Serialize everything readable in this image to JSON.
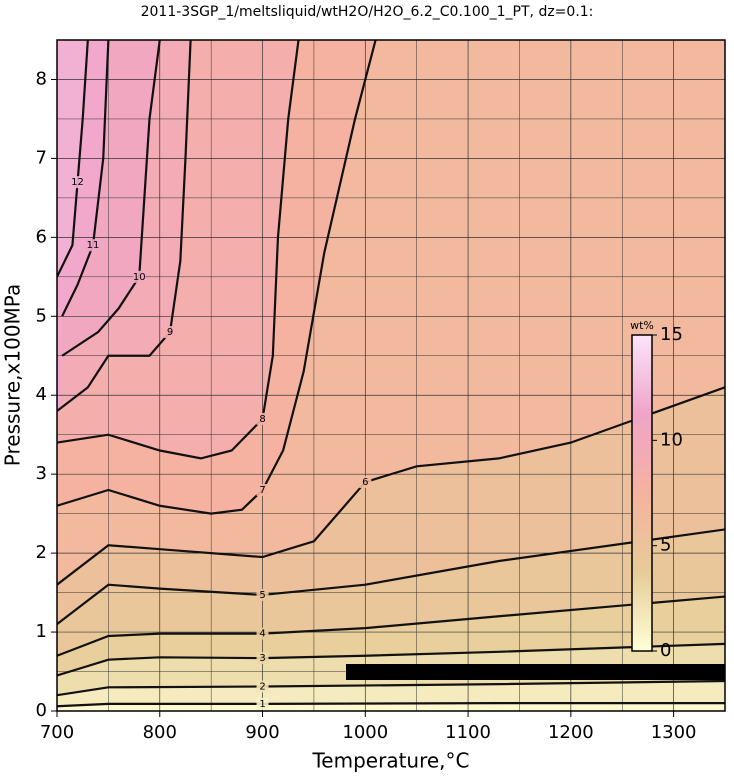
{
  "chart_data": {
    "type": "contour",
    "title": "2011-3SGP_1/meltsliquid/wtH2O/H2O_6.2_C0.100_1_PT, dz=0.1:",
    "x_label": "Temperature,°C",
    "y_label": "Pressure,x100MPa",
    "xlim": [
      700,
      1350
    ],
    "ylim": [
      0,
      8.5
    ],
    "xticks": [
      700,
      800,
      900,
      1000,
      1100,
      1200,
      1300
    ],
    "yticks": [
      0,
      1,
      2,
      3,
      4,
      5,
      6,
      7,
      8
    ],
    "xgrid_minor": [
      750,
      850,
      950,
      1050,
      1150,
      1250
    ],
    "ygrid_minor": [
      0.5,
      1.5,
      2.5,
      3.5,
      4.5,
      5.5,
      6.5,
      7.5
    ],
    "grid": true,
    "colormap": [
      "#ffffd8",
      "#e6cc98",
      "#f6b2a0",
      "#f0a4c8",
      "#fbe4fb"
    ],
    "colorbar": {
      "label": "wt%",
      "clim": [
        0,
        15
      ],
      "ticks": [
        0,
        5,
        10,
        15
      ]
    },
    "series": [
      {
        "level": 1,
        "x": [
          700,
          750,
          900,
          1130,
          1350
        ],
        "y": [
          0.06,
          0.09,
          0.09,
          0.1,
          0.1
        ]
      },
      {
        "level": 2,
        "x": [
          700,
          750,
          900,
          1130,
          1350
        ],
        "y": [
          0.2,
          0.3,
          0.31,
          0.34,
          0.38
        ]
      },
      {
        "level": 3,
        "x": [
          700,
          750,
          800,
          900,
          1000,
          1130,
          1350
        ],
        "y": [
          0.45,
          0.65,
          0.68,
          0.67,
          0.7,
          0.75,
          0.85
        ]
      },
      {
        "level": 4,
        "x": [
          700,
          750,
          800,
          900,
          1000,
          1130,
          1350
        ],
        "y": [
          0.7,
          0.95,
          0.98,
          0.98,
          1.05,
          1.2,
          1.45
        ]
      },
      {
        "level": 5,
        "x": [
          700,
          750,
          800,
          900,
          1000,
          1130,
          1350
        ],
        "y": [
          1.1,
          1.6,
          1.55,
          1.47,
          1.6,
          1.9,
          2.3
        ]
      },
      {
        "level": 6,
        "x": [
          700,
          750,
          800,
          900,
          950,
          1000,
          1050,
          1130,
          1200,
          1350
        ],
        "y": [
          1.6,
          2.1,
          2.05,
          1.95,
          2.15,
          2.9,
          3.1,
          3.2,
          3.4,
          4.1
        ]
      },
      {
        "level": 7,
        "x": [
          700,
          750,
          800,
          850,
          880,
          900,
          920,
          940,
          960,
          990,
          1010
        ],
        "y": [
          2.6,
          2.8,
          2.6,
          2.5,
          2.55,
          2.8,
          3.3,
          4.3,
          5.8,
          7.5,
          8.5
        ]
      },
      {
        "level": 8,
        "x": [
          700,
          750,
          800,
          840,
          870,
          900,
          910,
          915,
          925,
          935
        ],
        "y": [
          3.4,
          3.5,
          3.3,
          3.2,
          3.3,
          3.7,
          4.5,
          6.0,
          7.5,
          8.5
        ]
      },
      {
        "level": 9,
        "x": [
          700,
          730,
          750,
          790,
          810,
          820,
          825,
          830
        ],
        "y": [
          3.8,
          4.1,
          4.5,
          4.5,
          4.8,
          5.7,
          7.0,
          8.5
        ]
      },
      {
        "level": 10,
        "x": [
          705,
          740,
          760,
          780,
          785,
          790,
          800
        ],
        "y": [
          4.5,
          4.8,
          5.1,
          5.5,
          6.5,
          7.5,
          8.5
        ]
      },
      {
        "level": 11,
        "x": [
          705,
          720,
          735,
          745,
          750
        ],
        "y": [
          5.0,
          5.4,
          5.9,
          7.0,
          8.5
        ]
      },
      {
        "level": 12,
        "x": [
          700,
          715,
          720,
          725,
          730
        ],
        "y": [
          5.5,
          5.9,
          6.7,
          7.5,
          8.5
        ]
      }
    ]
  }
}
